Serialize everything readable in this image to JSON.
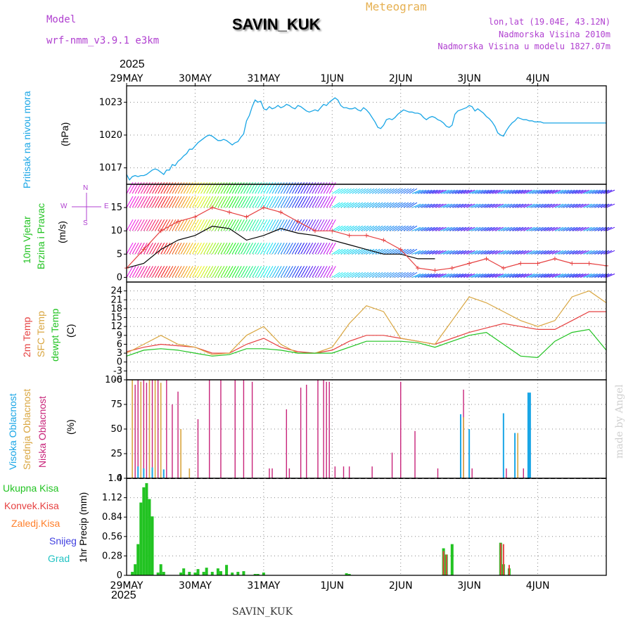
{
  "header": {
    "model_label": "Model",
    "model_name": "wrf-nmm_v3.9.1 e3km",
    "station": "SAVIN_KUK",
    "product": "Meteogram",
    "lonlat": "lon,lat (19.04E, 43.12N)",
    "elevation": "Nadmorska Visina 2010m",
    "model_elevation": "Nadmorska Visina u modelu 1827.07m",
    "year_top": "2025",
    "year_bottom": "2025",
    "footer_station": "SAVIN_KUK",
    "credit": "made by Angel"
  },
  "colors": {
    "pressure": "#1aa6e6",
    "wind_speed": "#000000",
    "wind_gust": "#e64040",
    "temp2m": "#e64040",
    "sfc_temp": "#d9a640",
    "dewpt": "#22c322",
    "high_cloud": "#1aa6e6",
    "mid_cloud": "#d9a640",
    "low_cloud": "#c8247a",
    "total_precip": "#22c322",
    "conv_precip": "#e64040",
    "frz_precip": "#ff7f2a",
    "snow": "#4040e0",
    "hail": "#22c3c3",
    "label_purple": "#b040d0",
    "label_orange": "#e6b050"
  },
  "chart_data": [
    {
      "type": "line",
      "id": "pressure",
      "ylabel_primary": "Pritisak na nivou mora",
      "ylabel_unit": "(hPa)",
      "ylim": [
        1015.5,
        1024.5
      ],
      "yticks": [
        1017,
        1020,
        1023
      ],
      "x_days": [
        "29MAY",
        "30MAY",
        "31MAY",
        "1JUN",
        "2JUN",
        "3JUN",
        "4JUN"
      ],
      "series": [
        {
          "name": "Pritisak",
          "x": [
            0,
            1,
            2,
            3,
            4,
            5,
            6,
            7,
            8,
            9,
            10,
            11,
            12,
            13,
            14,
            15,
            16,
            17,
            18,
            19,
            20,
            21,
            22,
            23,
            24,
            25,
            26,
            27,
            28,
            29,
            30,
            31,
            32,
            33,
            34,
            35,
            36,
            37,
            38,
            39,
            40,
            41,
            42,
            43,
            44,
            45,
            46,
            47,
            48,
            49,
            50,
            51,
            52,
            53,
            54,
            55,
            56,
            57,
            58,
            59,
            60,
            61,
            62,
            63,
            64,
            65,
            66,
            67,
            68,
            69,
            70,
            71,
            72,
            73,
            74,
            75,
            76,
            77,
            78,
            79,
            80,
            81,
            82,
            83,
            84,
            85,
            86,
            87,
            88,
            89,
            90,
            91,
            92,
            93,
            94,
            95,
            96,
            97,
            98,
            99,
            100,
            101,
            102,
            103,
            104,
            105,
            106,
            107,
            108,
            109,
            110,
            111,
            112,
            113,
            114,
            115,
            116,
            117,
            118,
            119,
            120,
            121,
            122,
            123,
            124,
            125,
            126,
            127,
            128,
            129,
            130,
            131,
            132,
            133,
            134,
            135,
            136,
            137,
            138,
            139,
            140,
            141,
            142,
            143,
            144,
            145,
            146,
            147,
            148,
            149,
            150,
            151,
            152,
            153,
            154,
            155,
            156,
            157,
            158,
            159,
            160,
            161,
            162,
            163,
            164,
            165,
            166,
            167,
            168
          ],
          "values": [
            1016.4,
            1015.9,
            1016.2,
            1016.3,
            1016.2,
            1016.3,
            1016.3,
            1016.4,
            1016.6,
            1016.8,
            1016.9,
            1016.8,
            1016.6,
            1016.4,
            1016.8,
            1016.8,
            1017.3,
            1017.2,
            1017.6,
            1017.8,
            1018.1,
            1018.3,
            1018.7,
            1018.7,
            1019.0,
            1019.3,
            1019.5,
            1019.7,
            1019.9,
            1020.0,
            1019.9,
            1019.7,
            1019.5,
            1019.5,
            1019.6,
            1019.5,
            1019.3,
            1019.1,
            1019.3,
            1019.4,
            1019.8,
            1020.1,
            1021.3,
            1021.8,
            1022.6,
            1023.2,
            1023.0,
            1023.1,
            1022.4,
            1022.3,
            1022.6,
            1022.4,
            1022.5,
            1022.7,
            1022.5,
            1022.6,
            1022.8,
            1022.7,
            1022.5,
            1022.4,
            1022.7,
            1022.6,
            1022.4,
            1022.2,
            1022.1,
            1022.2,
            1022.3,
            1022.2,
            1022.5,
            1022.8,
            1022.7,
            1023.0,
            1023.2,
            1023.4,
            1023.2,
            1022.7,
            1022.5,
            1022.5,
            1022.4,
            1022.4,
            1022.5,
            1022.3,
            1022.2,
            1022.5,
            1022.3,
            1022.0,
            1021.6,
            1021.2,
            1020.7,
            1020.6,
            1020.9,
            1021.4,
            1021.5,
            1021.4,
            1021.6,
            1021.9,
            1022.1,
            1022.3,
            1022.2,
            1022.1,
            1022.1,
            1022.0,
            1022.0,
            1021.9,
            1021.6,
            1021.4,
            1021.6,
            1021.7,
            1021.6,
            1021.4,
            1021.3,
            1021.1,
            1020.8,
            1020.7,
            1020.9,
            1021.9,
            1022.2,
            1022.3,
            1022.4,
            1022.5,
            1022.7,
            1022.6,
            1022.2,
            1022.4,
            1022.2,
            1022.0,
            1021.7,
            1021.5,
            1021.2,
            1020.8,
            1020.2,
            1020.0,
            1019.9,
            1020.4,
            1020.8,
            1021.1,
            1021.3,
            1021.6,
            1021.5,
            1021.4,
            1021.4,
            1021.3,
            1021.3,
            1021.2,
            1021.2,
            1021.2,
            1021.1,
            1021.1,
            1021.1,
            1021.1,
            1021.1,
            1021.1,
            1021.1,
            1021.1,
            1021.1,
            1021.1,
            1021.1,
            1021.1,
            1021.1,
            1021.1,
            1021.1,
            1021.1,
            1021.1,
            1021.1,
            1021.1,
            1021.1,
            1021.1,
            1021.1,
            1021.1
          ]
        }
      ]
    },
    {
      "type": "line",
      "id": "wind",
      "ylabel_primary": "10m Vjetar",
      "ylabel_secondary": "Brzina i Pravac",
      "ylabel_unit": "(m/s)",
      "compass": {
        "n": "N",
        "w": "W",
        "e": "E",
        "s": "S"
      },
      "ylim": [
        -1,
        20
      ],
      "yticks": [
        0,
        5,
        10,
        15
      ],
      "series": [
        {
          "name": "Brzina",
          "x": [
            0,
            6,
            12,
            18,
            24,
            30,
            36,
            42,
            48,
            54,
            60,
            66,
            72,
            78,
            84,
            90,
            96,
            102,
            108
          ],
          "values": [
            2,
            3,
            6,
            8,
            9,
            11,
            10.5,
            8,
            9,
            10.5,
            9.5,
            9,
            8,
            7,
            6,
            5,
            5,
            4,
            4
          ]
        },
        {
          "name": "Udari",
          "x": [
            0,
            6,
            12,
            18,
            24,
            30,
            36,
            42,
            48,
            54,
            60,
            66,
            72,
            78,
            84,
            90,
            96,
            102,
            108,
            114,
            120,
            126,
            132,
            138,
            144,
            150,
            156,
            162,
            168
          ],
          "values": [
            2,
            6,
            10,
            12,
            13,
            15,
            14,
            13,
            15,
            14,
            12,
            10,
            10,
            9,
            9,
            8,
            6,
            2,
            1.5,
            2,
            3,
            4,
            2,
            3,
            3,
            4,
            3,
            3,
            2.5
          ]
        }
      ],
      "barb_rows": [
        0,
        5,
        10,
        15,
        18
      ]
    },
    {
      "type": "line",
      "id": "temperature",
      "ylabel_primary": "2m Temp",
      "ylabel_secondary": "SFC Temp",
      "ylabel_tertiary": "dewpt Temp",
      "ylabel_unit": "(C)",
      "ylim": [
        -6,
        27
      ],
      "yticks": [
        -6,
        -3,
        0,
        3,
        6,
        9,
        12,
        15,
        18,
        21,
        24
      ],
      "x": [
        0,
        6,
        12,
        18,
        24,
        30,
        36,
        42,
        48,
        54,
        60,
        66,
        72,
        78,
        84,
        90,
        96,
        102,
        108,
        114,
        120,
        126,
        132,
        138,
        144,
        150,
        156,
        162,
        168
      ],
      "series": [
        {
          "name": "2m Temp",
          "values": [
            3.5,
            5,
            6,
            5.5,
            5,
            3,
            3,
            6,
            8,
            5,
            3.5,
            3,
            4,
            7,
            9,
            9,
            8,
            7,
            6,
            8,
            10,
            11.5,
            13,
            12,
            11,
            11,
            14,
            17,
            17
          ]
        },
        {
          "name": "SFC Temp",
          "values": [
            3,
            6,
            9,
            6,
            5,
            2.5,
            3,
            9,
            12,
            6,
            3,
            3,
            5,
            13,
            19,
            17,
            8,
            7,
            6,
            14,
            22,
            20,
            17,
            14,
            12,
            14,
            22,
            24,
            20
          ]
        },
        {
          "name": "dewpt Temp",
          "values": [
            2,
            4,
            4.5,
            4,
            3,
            2,
            2.5,
            4.5,
            4.5,
            4,
            3,
            3,
            3,
            5,
            7,
            7,
            7,
            6.5,
            5,
            7,
            9,
            10,
            6,
            2,
            1.5,
            7,
            10,
            11,
            4
          ]
        }
      ]
    },
    {
      "type": "bar",
      "id": "clouds",
      "ylabel_primary": "Visoka Oblacnost",
      "ylabel_secondary": "Srednja Oblacnost",
      "ylabel_tertiary": "Niska Oblacnost",
      "ylabel_unit": "(%)",
      "ylim": [
        0,
        100
      ],
      "yticks": [
        0,
        25,
        50,
        75,
        100
      ],
      "series": [
        {
          "name": "Niska",
          "x": [
            3,
            4,
            5,
            6,
            7,
            9,
            11,
            14,
            16,
            18,
            25,
            29,
            33,
            38,
            41,
            44,
            50,
            51,
            56,
            57,
            61,
            63,
            67,
            69,
            70,
            71,
            73,
            76,
            78,
            86,
            93,
            96,
            101,
            109,
            117,
            118,
            121,
            133,
            139,
            141
          ],
          "values": [
            95,
            100,
            98,
            100,
            97,
            100,
            100,
            100,
            75,
            88,
            60,
            100,
            100,
            100,
            100,
            98,
            10,
            10,
            70,
            10,
            92,
            95,
            100,
            100,
            98,
            98,
            12,
            12,
            12,
            12,
            26,
            98,
            48,
            10,
            30,
            90,
            10,
            10,
            10,
            10
          ]
        },
        {
          "name": "Srednja",
          "x": [
            2,
            5,
            8,
            10,
            12,
            19,
            22,
            118,
            137
          ],
          "values": [
            100,
            98,
            100,
            100,
            97,
            50,
            10,
            62,
            46
          ]
        },
        {
          "name": "Visoka",
          "x": [
            4,
            6,
            9,
            13,
            117,
            120,
            132,
            136,
            141
          ],
          "values": [
            12,
            10,
            11,
            9,
            65,
            50,
            66,
            46,
            87
          ]
        }
      ]
    },
    {
      "type": "bar",
      "id": "precip",
      "ylabel_unit": "1hr Precip (mm)",
      "legend": [
        "Ukupna Kisa",
        "Konvek.Kisa",
        "Zaledj.Kisa",
        "Snijeg",
        "Grad"
      ],
      "ylim": [
        0,
        1.4
      ],
      "yticks": [
        0,
        0.28,
        0.56,
        0.84,
        1.12,
        1.4
      ],
      "ytick_labels": [
        "0",
        "0.28",
        "0.56",
        "0.84",
        "1.12",
        "1.4"
      ],
      "x_days": [
        "29MAY",
        "30MAY",
        "31MAY",
        "1JUN",
        "2JUN",
        "3JUN",
        "4JUN"
      ],
      "series": [
        {
          "name": "Ukupna Kisa",
          "x": [
            2,
            3,
            4,
            5,
            6,
            7,
            8,
            9,
            11,
            12,
            13,
            19,
            20,
            22,
            24,
            25,
            27,
            28,
            30,
            32,
            33,
            35,
            37,
            39,
            41,
            45,
            46,
            48,
            77,
            78,
            111,
            112,
            114,
            131,
            132,
            134
          ],
          "values": [
            0.05,
            0.16,
            0.45,
            1.05,
            1.27,
            1.33,
            1.1,
            0.85,
            0.04,
            0.16,
            0.05,
            0.04,
            0.1,
            0.05,
            0.04,
            0.09,
            0.05,
            0.11,
            0.05,
            0.1,
            0.06,
            0.15,
            0.04,
            0.05,
            0.06,
            0.02,
            0.02,
            0.04,
            0.03,
            0.02,
            0.39,
            0.3,
            0.45,
            0.47,
            0.16,
            0.1
          ]
        },
        {
          "name": "Konvek.Kisa",
          "x": [
            111,
            112,
            131,
            132,
            134
          ],
          "values": [
            0.35,
            0.3,
            0.46,
            0.45,
            0.15
          ]
        }
      ]
    }
  ]
}
